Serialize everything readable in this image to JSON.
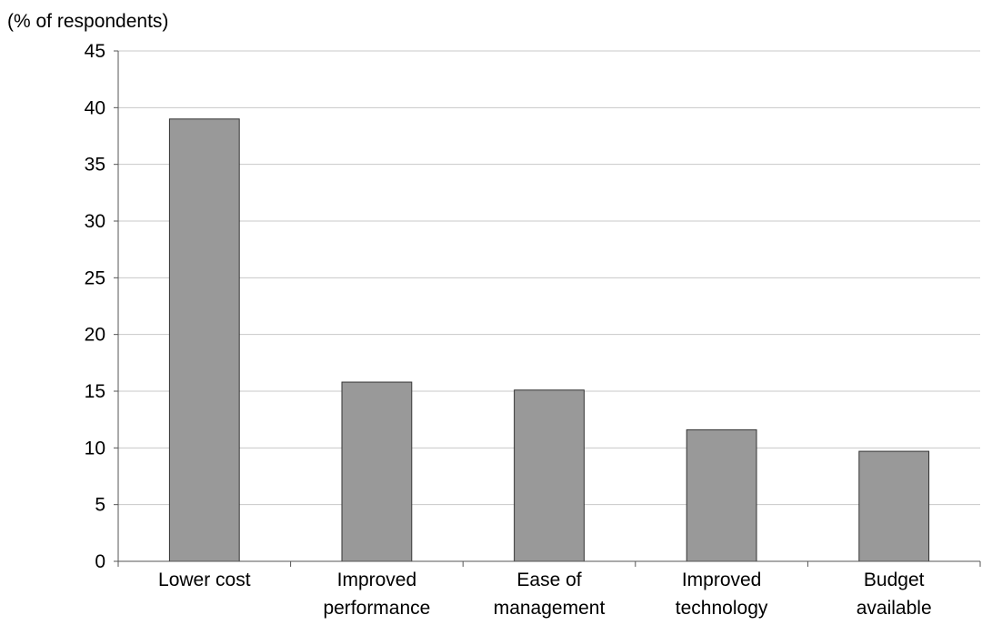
{
  "chart_data": {
    "type": "bar",
    "title": "",
    "xlabel": "",
    "ylabel": "(% of respondents)",
    "ylim": [
      0,
      45
    ],
    "yticks": [
      0,
      5,
      10,
      15,
      20,
      25,
      30,
      35,
      40,
      45
    ],
    "grid": true,
    "legend": "none",
    "categories": [
      [
        "Lower cost"
      ],
      [
        "Improved",
        "performance"
      ],
      [
        "Ease of",
        "management"
      ],
      [
        "Improved",
        "technology"
      ],
      [
        "Budget",
        "available"
      ]
    ],
    "values": [
      39,
      15.8,
      15.1,
      11.6,
      9.7
    ],
    "colors": {
      "bar": "#999999",
      "bar_stroke": "#333333",
      "grid": "#c8c8c8",
      "axis": "#555555"
    }
  }
}
